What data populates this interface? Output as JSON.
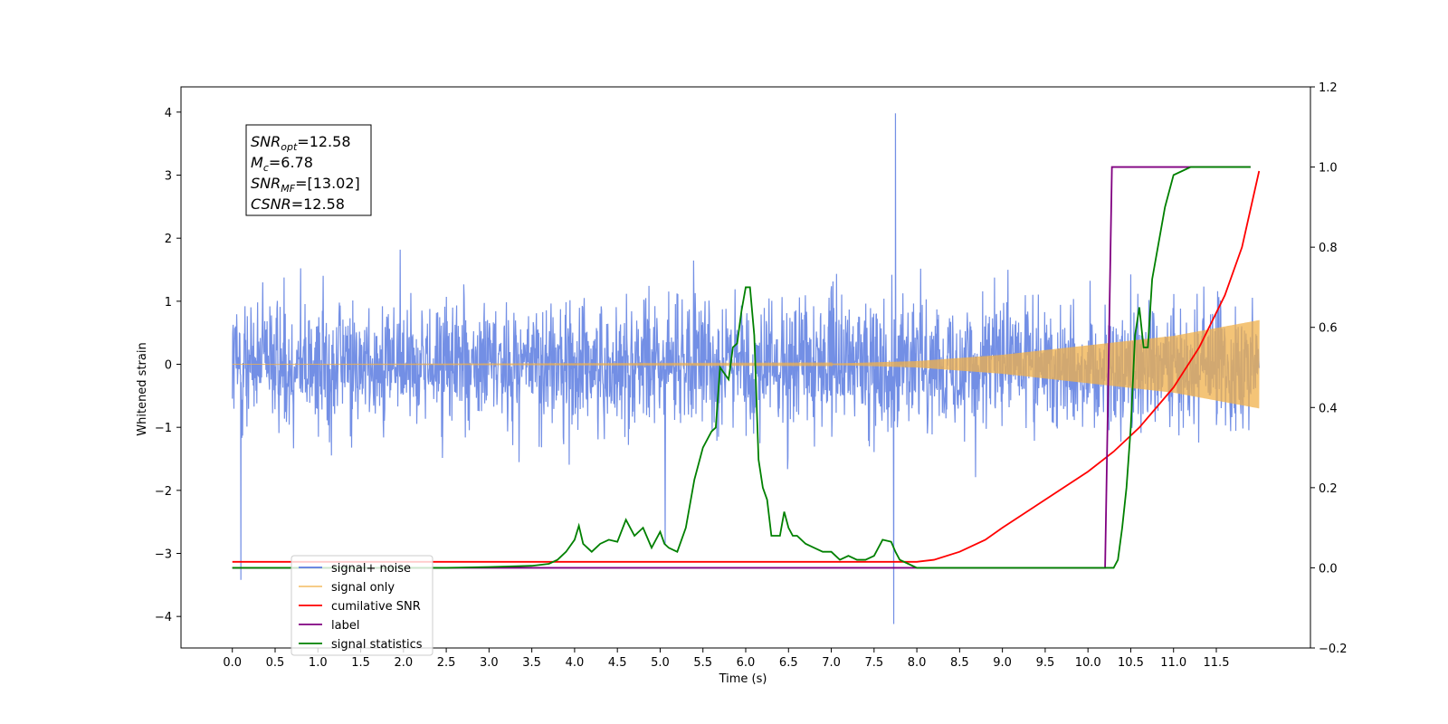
{
  "chart_data": {
    "type": "line",
    "xlabel": "Time (s)",
    "ylabel": "Whitened strain",
    "ylabel_right": "",
    "xlim": [
      -0.6,
      12.6
    ],
    "ylim": [
      -4.5,
      4.4
    ],
    "ylim_right": [
      -0.2,
      1.2
    ],
    "xticks": [
      0.0,
      0.5,
      1.0,
      1.5,
      2.0,
      2.5,
      3.0,
      3.5,
      4.0,
      4.5,
      5.0,
      5.5,
      6.0,
      6.5,
      7.0,
      7.5,
      8.0,
      8.5,
      9.0,
      9.5,
      10.0,
      10.5,
      11.0,
      11.5
    ],
    "xtick_labels": [
      "0.0",
      "0.5",
      "1.0",
      "1.5",
      "2.0",
      "2.5",
      "3.0",
      "3.5",
      "4.0",
      "4.5",
      "5.0",
      "5.5",
      "6.0",
      "6.5",
      "7.0",
      "7.5",
      "8.0",
      "8.5",
      "9.0",
      "9.5",
      "10.0",
      "10.5",
      "11.0",
      "11.5"
    ],
    "yticks_left": [
      -4,
      -3,
      -2,
      -1,
      0,
      1,
      2,
      3,
      4
    ],
    "ytick_labels_left": [
      "−4",
      "−3",
      "−2",
      "−1",
      "0",
      "1",
      "2",
      "3",
      "4"
    ],
    "yticks_right": [
      -0.2,
      0.0,
      0.2,
      0.4,
      0.6,
      0.8,
      1.0,
      1.2
    ],
    "ytick_labels_right": [
      "−0.2",
      "0.0",
      "0.2",
      "0.4",
      "0.6",
      "0.8",
      "1.0",
      "1.2"
    ],
    "grid": false,
    "legend_position": "lower-left",
    "annotation": {
      "lines": [
        {
          "sym": "SNR",
          "sub": "opt",
          "value": "=12.58"
        },
        {
          "sym": "M",
          "sub": "c",
          "value": "=6.78"
        },
        {
          "sym": "SNR",
          "sub": "MF",
          "value": "=[13.02]"
        },
        {
          "sym": "CSNR",
          "sub": "",
          "value": "=12.58"
        }
      ]
    },
    "series": [
      {
        "name": "signal+ noise",
        "axis": "left",
        "color": "#5b7be0",
        "style": "noise",
        "t_range": [
          0.0,
          12.0
        ],
        "noise_envelope_typical": 1.5,
        "noise_envelope_peak": 3.5,
        "spikes": [
          [
            7.75,
            3.98
          ],
          [
            7.73,
            -4.12
          ],
          [
            0.1,
            -3.42
          ]
        ]
      },
      {
        "name": "signal only",
        "axis": "left",
        "color": "#f0b04a",
        "style": "chirp",
        "t_range": [
          0.0,
          12.0
        ],
        "amplitude_envelope": {
          "t": [
            0.0,
            7.0,
            8.0,
            9.0,
            10.0,
            11.0,
            12.0
          ],
          "amp": [
            0.0,
            0.01,
            0.05,
            0.15,
            0.3,
            0.45,
            0.7
          ]
        }
      },
      {
        "name": "cumilative SNR",
        "axis": "right",
        "color": "#ff0000",
        "t": [
          0.0,
          8.0,
          8.2,
          8.5,
          8.8,
          9.0,
          9.5,
          10.0,
          10.3,
          10.6,
          11.0,
          11.3,
          11.6,
          11.8,
          12.0
        ],
        "values": [
          0.015,
          0.015,
          0.02,
          0.04,
          0.07,
          0.1,
          0.17,
          0.24,
          0.29,
          0.35,
          0.45,
          0.55,
          0.68,
          0.8,
          0.99
        ]
      },
      {
        "name": "label",
        "axis": "right",
        "color": "#800080",
        "t": [
          0.0,
          10.2,
          10.28,
          11.9
        ],
        "values": [
          0.0,
          0.0,
          1.0,
          1.0
        ]
      },
      {
        "name": "signal statistics",
        "axis": "right",
        "color": "#008000",
        "t": [
          0.0,
          2.5,
          3.0,
          3.5,
          3.7,
          3.8,
          3.9,
          4.0,
          4.05,
          4.1,
          4.2,
          4.3,
          4.4,
          4.5,
          4.6,
          4.7,
          4.8,
          4.9,
          5.0,
          5.05,
          5.1,
          5.2,
          5.3,
          5.4,
          5.5,
          5.6,
          5.65,
          5.7,
          5.8,
          5.85,
          5.9,
          5.95,
          6.0,
          6.05,
          6.1,
          6.15,
          6.2,
          6.25,
          6.3,
          6.4,
          6.45,
          6.5,
          6.55,
          6.6,
          6.7,
          6.8,
          6.9,
          7.0,
          7.1,
          7.2,
          7.3,
          7.4,
          7.5,
          7.6,
          7.7,
          7.75,
          7.8,
          7.9,
          8.0,
          8.5,
          9.0,
          9.5,
          10.0,
          10.25,
          10.3,
          10.35,
          10.4,
          10.45,
          10.5,
          10.55,
          10.6,
          10.65,
          10.7,
          10.75,
          10.8,
          10.85,
          10.9,
          11.0,
          11.1,
          11.2,
          11.3,
          11.9
        ],
        "values": [
          0.0,
          0.0,
          0.002,
          0.005,
          0.01,
          0.02,
          0.04,
          0.07,
          0.105,
          0.06,
          0.04,
          0.06,
          0.07,
          0.065,
          0.12,
          0.08,
          0.1,
          0.05,
          0.09,
          0.06,
          0.05,
          0.04,
          0.1,
          0.22,
          0.3,
          0.34,
          0.35,
          0.5,
          0.47,
          0.55,
          0.56,
          0.64,
          0.7,
          0.7,
          0.58,
          0.27,
          0.2,
          0.17,
          0.08,
          0.08,
          0.14,
          0.1,
          0.08,
          0.08,
          0.06,
          0.05,
          0.04,
          0.04,
          0.02,
          0.03,
          0.02,
          0.02,
          0.03,
          0.07,
          0.065,
          0.04,
          0.02,
          0.01,
          0.0,
          0.0,
          0.0,
          0.0,
          0.0,
          0.0,
          0.0,
          0.02,
          0.1,
          0.2,
          0.35,
          0.58,
          0.65,
          0.55,
          0.55,
          0.72,
          0.78,
          0.84,
          0.9,
          0.98,
          0.99,
          1.0,
          1.0,
          1.0
        ]
      }
    ]
  }
}
